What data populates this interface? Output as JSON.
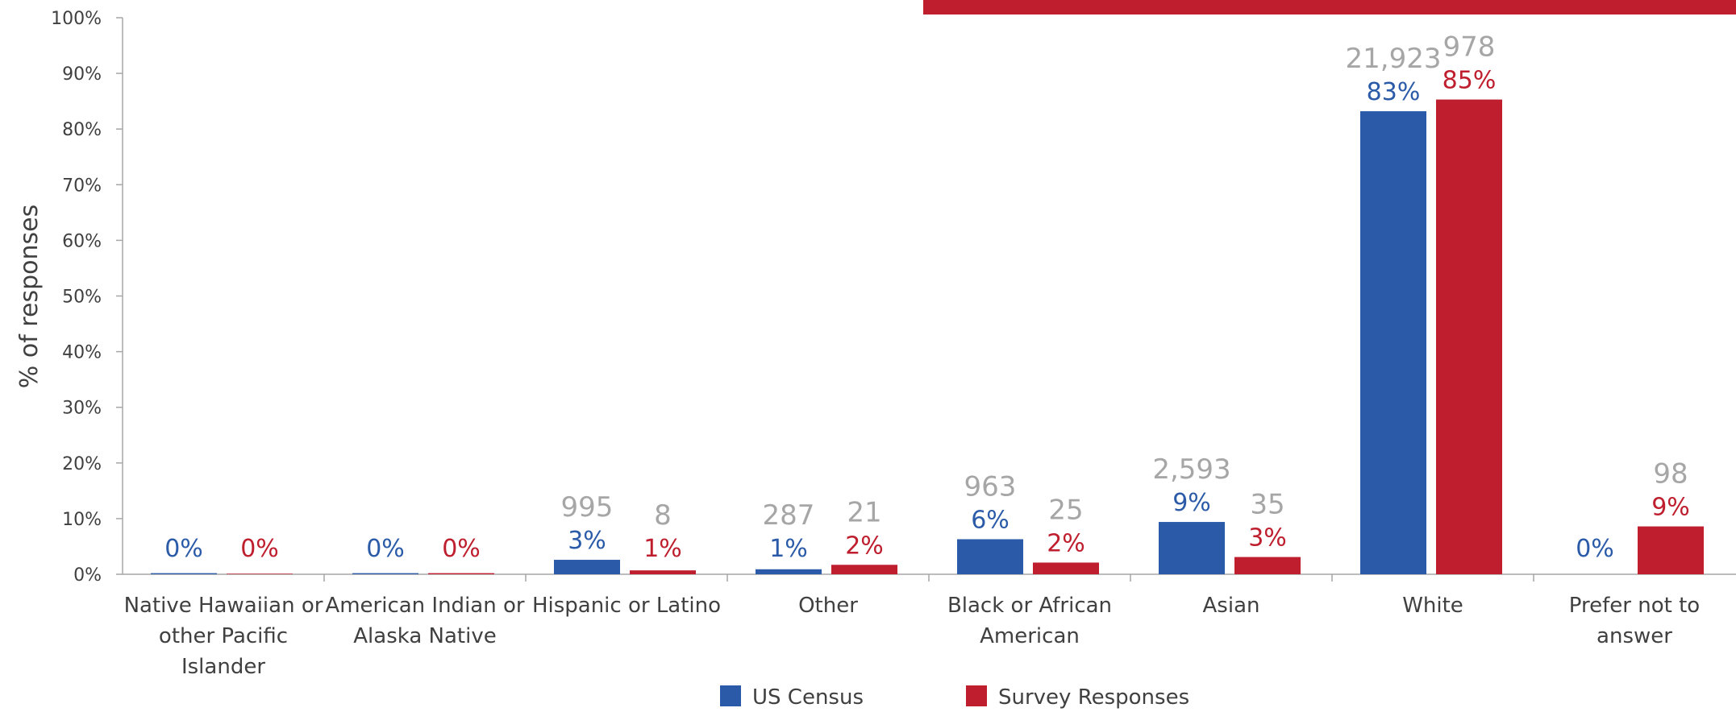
{
  "chart_data": {
    "type": "bar",
    "title": "",
    "ylabel": "% of responses",
    "xlabel": "",
    "ylim": [
      0,
      100
    ],
    "y_ticks": [
      "0%",
      "10%",
      "20%",
      "30%",
      "40%",
      "50%",
      "60%",
      "70%",
      "80%",
      "90%",
      "100%"
    ],
    "categories": [
      [
        "Native Hawaiian or",
        "other Pacific",
        "Islander"
      ],
      [
        "American Indian or",
        "Alaska Native"
      ],
      [
        "Hispanic or Latino"
      ],
      [
        "Other"
      ],
      [
        "Black or African",
        "American"
      ],
      [
        "Asian"
      ],
      [
        "White"
      ],
      [
        "Prefer not to",
        "answer"
      ]
    ],
    "series": [
      {
        "name": "US Census",
        "color": "#2b5ba8",
        "values": [
          0.2,
          0.2,
          2.6,
          0.9,
          6.3,
          9.4,
          83.2,
          0
        ],
        "labels": [
          "0%",
          "0%",
          "3%",
          "1%",
          "6%",
          "9%",
          "83%",
          "0%"
        ],
        "counts": [
          "",
          "",
          "995",
          "287",
          "963",
          "2,593",
          "21,923",
          ""
        ]
      },
      {
        "name": "Survey Responses",
        "color": "#be1e2d",
        "values": [
          0.1,
          0.2,
          0.7,
          1.7,
          2.1,
          3.1,
          85.3,
          8.6
        ],
        "labels": [
          "0%",
          "0%",
          "1%",
          "2%",
          "2%",
          "3%",
          "85%",
          "9%"
        ],
        "counts": [
          "",
          "",
          "8",
          "21",
          "25",
          "35",
          "978",
          "98"
        ]
      }
    ],
    "grid": false,
    "legend_position": "bottom-center",
    "axis_color": "#a6a6a6",
    "count_color": "#a6a6a6",
    "tick_color": "#404040",
    "banner_color": "#be1e2d"
  }
}
